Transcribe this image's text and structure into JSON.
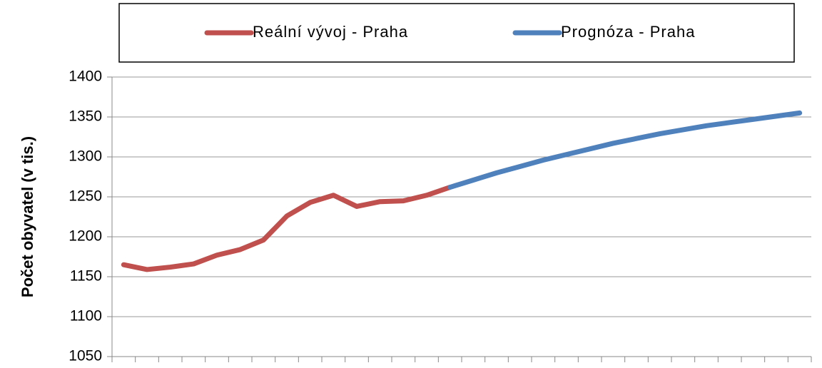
{
  "chart_data": {
    "type": "line",
    "y_label": "Počet obyvatel (v tis.)",
    "categories": [
      null,
      null,
      null,
      null,
      null,
      null,
      null,
      null,
      null,
      null,
      null,
      null,
      null,
      null,
      null,
      null,
      null,
      null,
      null,
      null,
      null,
      null,
      null,
      null,
      null,
      null,
      null,
      null,
      null,
      null
    ],
    "series": [
      {
        "name": "Reální vývoj - Praha",
        "color": "#c0504d",
        "values": [
          1165,
          1159,
          1162,
          1166,
          1177,
          1184,
          1196,
          1226,
          1243,
          1252,
          1238,
          1244,
          1245,
          1252,
          1262,
          null,
          null,
          null,
          null,
          null,
          null,
          null,
          null,
          null,
          null,
          null,
          null,
          null,
          null,
          null
        ]
      },
      {
        "name": "Prognóza - Praha",
        "color": "#4f81bd",
        "values": [
          null,
          null,
          null,
          null,
          null,
          null,
          null,
          null,
          null,
          null,
          null,
          null,
          null,
          null,
          1262,
          1271,
          1280,
          1288,
          1296,
          1303,
          1310,
          1317,
          1323,
          1329,
          1334,
          1339,
          1343,
          1347,
          1351,
          1355
        ]
      }
    ],
    "ylim": [
      1050,
      1400
    ],
    "yticks": [
      1050,
      1100,
      1150,
      1200,
      1250,
      1300,
      1350,
      1400
    ],
    "grid": true,
    "legend": "top"
  }
}
